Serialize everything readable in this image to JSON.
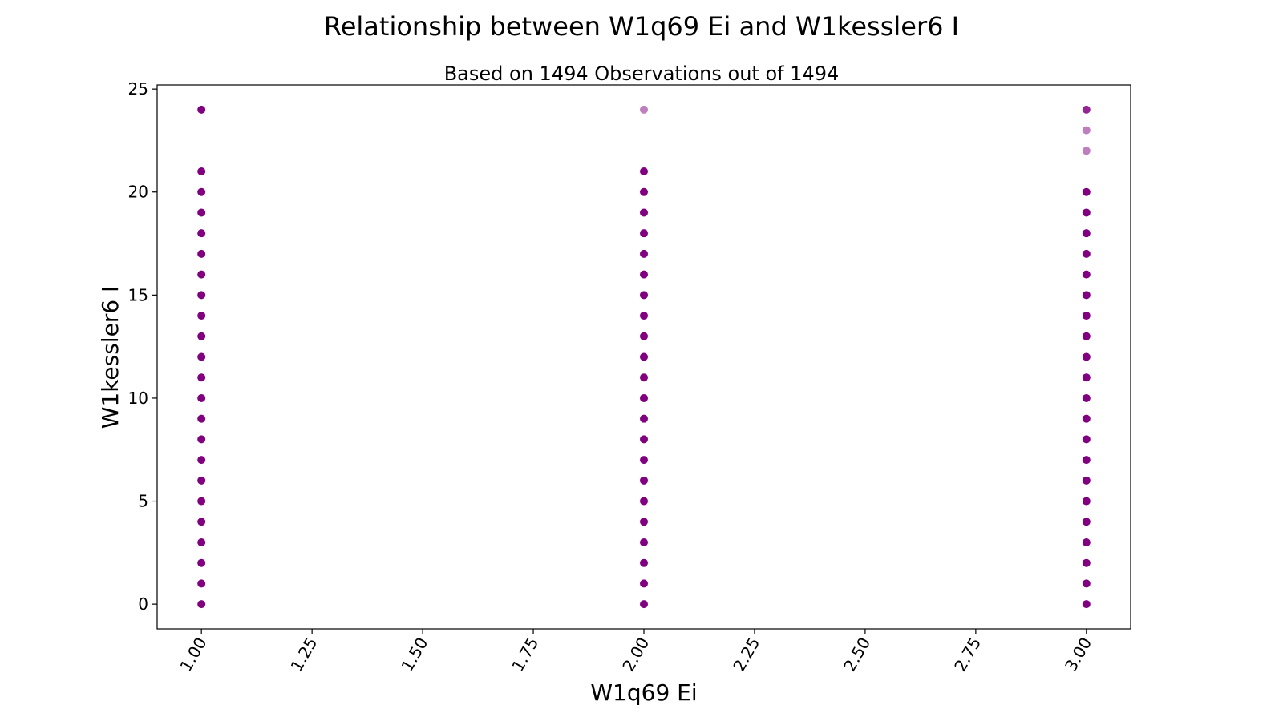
{
  "chart_data": {
    "type": "scatter",
    "title": "Relationship between W1q69 Ei and W1kessler6 I",
    "subtitle": "Based on 1494 Observations out of 1494",
    "xlabel": "W1q69 Ei",
    "ylabel": "W1kessler6 I",
    "xlim": [
      0.9,
      3.1
    ],
    "ylim": [
      -1.2,
      25.2
    ],
    "x_ticks": [
      "1.00",
      "1.25",
      "1.50",
      "1.75",
      "2.00",
      "2.25",
      "2.50",
      "2.75",
      "3.00"
    ],
    "y_ticks": [
      "0",
      "5",
      "10",
      "15",
      "20",
      "25"
    ],
    "grid": false,
    "marker_color": "#800080",
    "series": [
      {
        "points": [
          {
            "x": 1,
            "y": 0,
            "alpha": 1.0
          },
          {
            "x": 1,
            "y": 1,
            "alpha": 1.0
          },
          {
            "x": 1,
            "y": 2,
            "alpha": 1.0
          },
          {
            "x": 1,
            "y": 3,
            "alpha": 1.0
          },
          {
            "x": 1,
            "y": 4,
            "alpha": 1.0
          },
          {
            "x": 1,
            "y": 5,
            "alpha": 1.0
          },
          {
            "x": 1,
            "y": 6,
            "alpha": 1.0
          },
          {
            "x": 1,
            "y": 7,
            "alpha": 1.0
          },
          {
            "x": 1,
            "y": 8,
            "alpha": 1.0
          },
          {
            "x": 1,
            "y": 9,
            "alpha": 1.0
          },
          {
            "x": 1,
            "y": 10,
            "alpha": 1.0
          },
          {
            "x": 1,
            "y": 11,
            "alpha": 1.0
          },
          {
            "x": 1,
            "y": 12,
            "alpha": 1.0
          },
          {
            "x": 1,
            "y": 13,
            "alpha": 1.0
          },
          {
            "x": 1,
            "y": 14,
            "alpha": 1.0
          },
          {
            "x": 1,
            "y": 15,
            "alpha": 1.0
          },
          {
            "x": 1,
            "y": 16,
            "alpha": 1.0
          },
          {
            "x": 1,
            "y": 17,
            "alpha": 1.0
          },
          {
            "x": 1,
            "y": 18,
            "alpha": 1.0
          },
          {
            "x": 1,
            "y": 19,
            "alpha": 1.0
          },
          {
            "x": 1,
            "y": 20,
            "alpha": 1.0
          },
          {
            "x": 1,
            "y": 21,
            "alpha": 1.0
          },
          {
            "x": 1,
            "y": 24,
            "alpha": 1.0
          },
          {
            "x": 2,
            "y": 0,
            "alpha": 1.0
          },
          {
            "x": 2,
            "y": 1,
            "alpha": 1.0
          },
          {
            "x": 2,
            "y": 2,
            "alpha": 1.0
          },
          {
            "x": 2,
            "y": 3,
            "alpha": 1.0
          },
          {
            "x": 2,
            "y": 4,
            "alpha": 1.0
          },
          {
            "x": 2,
            "y": 5,
            "alpha": 1.0
          },
          {
            "x": 2,
            "y": 6,
            "alpha": 1.0
          },
          {
            "x": 2,
            "y": 7,
            "alpha": 1.0
          },
          {
            "x": 2,
            "y": 8,
            "alpha": 1.0
          },
          {
            "x": 2,
            "y": 9,
            "alpha": 1.0
          },
          {
            "x": 2,
            "y": 10,
            "alpha": 1.0
          },
          {
            "x": 2,
            "y": 11,
            "alpha": 1.0
          },
          {
            "x": 2,
            "y": 12,
            "alpha": 1.0
          },
          {
            "x": 2,
            "y": 13,
            "alpha": 1.0
          },
          {
            "x": 2,
            "y": 14,
            "alpha": 1.0
          },
          {
            "x": 2,
            "y": 15,
            "alpha": 1.0
          },
          {
            "x": 2,
            "y": 16,
            "alpha": 1.0
          },
          {
            "x": 2,
            "y": 17,
            "alpha": 1.0
          },
          {
            "x": 2,
            "y": 18,
            "alpha": 1.0
          },
          {
            "x": 2,
            "y": 19,
            "alpha": 1.0
          },
          {
            "x": 2,
            "y": 20,
            "alpha": 1.0
          },
          {
            "x": 2,
            "y": 21,
            "alpha": 1.0
          },
          {
            "x": 2,
            "y": 24,
            "alpha": 0.5
          },
          {
            "x": 3,
            "y": 0,
            "alpha": 1.0
          },
          {
            "x": 3,
            "y": 1,
            "alpha": 1.0
          },
          {
            "x": 3,
            "y": 2,
            "alpha": 1.0
          },
          {
            "x": 3,
            "y": 3,
            "alpha": 1.0
          },
          {
            "x": 3,
            "y": 4,
            "alpha": 1.0
          },
          {
            "x": 3,
            "y": 5,
            "alpha": 1.0
          },
          {
            "x": 3,
            "y": 6,
            "alpha": 1.0
          },
          {
            "x": 3,
            "y": 7,
            "alpha": 1.0
          },
          {
            "x": 3,
            "y": 8,
            "alpha": 1.0
          },
          {
            "x": 3,
            "y": 9,
            "alpha": 1.0
          },
          {
            "x": 3,
            "y": 10,
            "alpha": 1.0
          },
          {
            "x": 3,
            "y": 11,
            "alpha": 1.0
          },
          {
            "x": 3,
            "y": 12,
            "alpha": 1.0
          },
          {
            "x": 3,
            "y": 13,
            "alpha": 1.0
          },
          {
            "x": 3,
            "y": 14,
            "alpha": 1.0
          },
          {
            "x": 3,
            "y": 15,
            "alpha": 1.0
          },
          {
            "x": 3,
            "y": 16,
            "alpha": 1.0
          },
          {
            "x": 3,
            "y": 17,
            "alpha": 1.0
          },
          {
            "x": 3,
            "y": 18,
            "alpha": 1.0
          },
          {
            "x": 3,
            "y": 19,
            "alpha": 1.0
          },
          {
            "x": 3,
            "y": 20,
            "alpha": 1.0
          },
          {
            "x": 3,
            "y": 22,
            "alpha": 0.5
          },
          {
            "x": 3,
            "y": 23,
            "alpha": 0.5
          },
          {
            "x": 3,
            "y": 24,
            "alpha": 0.85
          }
        ]
      }
    ]
  }
}
